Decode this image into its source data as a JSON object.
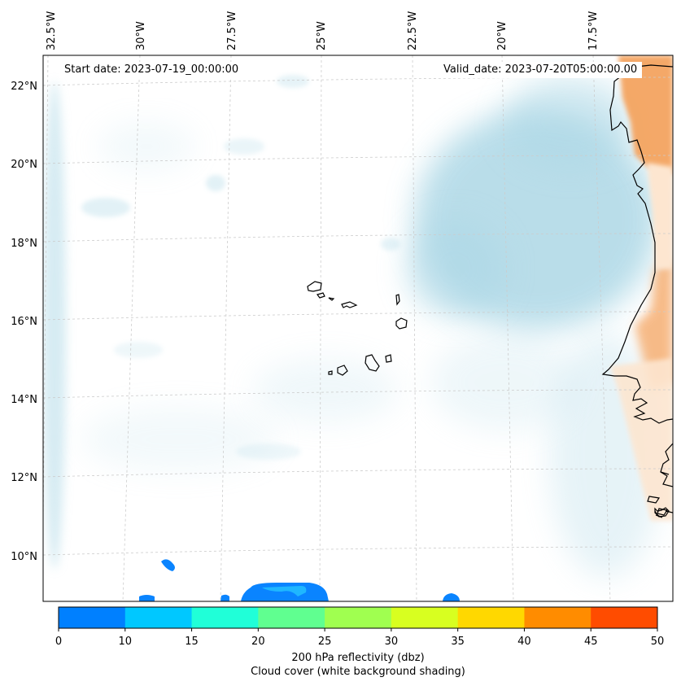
{
  "annotations": {
    "start_date": "Start date: 2023-07-19_00:00:00",
    "valid_date": "Valid_date: 2023-07-20T05:00:00.00"
  },
  "longitude_labels": [
    "32.5°W",
    "30°W",
    "27.5°W",
    "25°W",
    "22.5°W",
    "20°W",
    "17.5°W"
  ],
  "latitude_labels": [
    "22°N",
    "20°N",
    "18°N",
    "16°N",
    "14°N",
    "12°N",
    "10°N"
  ],
  "colorbar": {
    "ticks": [
      "0",
      "10",
      "15",
      "20",
      "25",
      "30",
      "35",
      "40",
      "45",
      "50"
    ],
    "colors": [
      "#0080ff",
      "#00c8ff",
      "#20ffd8",
      "#60ff90",
      "#a0ff50",
      "#d8ff20",
      "#ffd800",
      "#ff8c00",
      "#ff4c00"
    ],
    "label_line1": "200 hPa reflectivity (dbz)",
    "label_line2": "Cloud cover (white background shading)"
  },
  "colors": {
    "cloud": "#add8e6",
    "land_warm": "#f4a460",
    "land_light": "#fde6d0",
    "reflectivity_low": "#0a84ff",
    "reflectivity_mid": "#1fb7ff",
    "coast": "#000000",
    "grid": "#cccccc"
  }
}
